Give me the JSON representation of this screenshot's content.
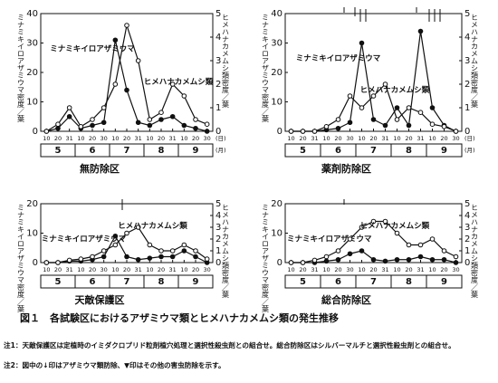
{
  "chart_data": [
    {
      "type": "line",
      "title": "無防除区",
      "ylabel": "ミナミキイロアザミウマ密度／葉",
      "y2label": "ヒメハナカメムシ類密度／葉",
      "categories": [
        "10",
        "20",
        "31",
        "10",
        "20",
        "30",
        "10",
        "20",
        "31",
        "10",
        "20",
        "31",
        "10",
        "20",
        "30"
      ],
      "months": [
        5,
        6,
        7,
        8,
        9
      ],
      "xlabel": "(日)",
      "month_label": "(月)",
      "ylim": [
        0,
        40
      ],
      "yticks": [
        0,
        10,
        20,
        30,
        40
      ],
      "y2lim": [
        0,
        5
      ],
      "y2ticks": [
        0,
        1,
        2,
        3,
        4,
        5
      ],
      "series": [
        {
          "name": "ミナミキイロアザミウマ",
          "color": "#111",
          "marker": "filled",
          "values": [
            0,
            1,
            5,
            1,
            2,
            3,
            31,
            14,
            3,
            2,
            4,
            5,
            2,
            1,
            0
          ]
        },
        {
          "name": "ヒメハナカメムシ類",
          "color": "#111",
          "marker": "open",
          "axis": "y2",
          "values": [
            0,
            0.3,
            1,
            0.2,
            0.5,
            1,
            2,
            4.5,
            3,
            0.5,
            0.8,
            2,
            1.5,
            0.5,
            0.3
          ]
        }
      ]
    },
    {
      "type": "line",
      "title": "薬剤防除区",
      "ylabel": "ミナミキイロアザミウマ密度／葉",
      "y2label": "ヒメハナカメムシ類密度／葉",
      "categories": [
        "10",
        "20",
        "31",
        "10",
        "20",
        "30",
        "10",
        "20",
        "31",
        "10",
        "20",
        "31",
        "10",
        "20",
        "30"
      ],
      "months": [
        5,
        6,
        7,
        8,
        9
      ],
      "xlabel": "(日)",
      "month_label": "(月)",
      "ylim": [
        0,
        40
      ],
      "yticks": [
        0,
        10,
        20,
        30,
        40
      ],
      "y2lim": [
        0,
        5
      ],
      "y2ticks": [
        0,
        1,
        2,
        3,
        4,
        5
      ],
      "series": [
        {
          "name": "ミナミキイロアザミウマ",
          "color": "#111",
          "marker": "filled",
          "values": [
            0,
            0,
            0,
            0.5,
            1,
            3,
            30,
            4,
            2,
            8,
            2,
            34,
            8,
            2,
            0
          ]
        },
        {
          "name": "ヒメハナカメムシ類",
          "color": "#111",
          "marker": "open",
          "axis": "y2",
          "values": [
            0,
            0,
            0,
            0.2,
            0.5,
            1.5,
            1,
            1.5,
            2,
            0.5,
            1,
            0.8,
            0.3,
            0.2,
            0
          ]
        }
      ]
    },
    {
      "type": "line",
      "title": "天敵保護区",
      "ylabel": "ミナミキイロアザミウマ密度／葉",
      "y2label": "ヒメハナカメムシ類密度／葉",
      "categories": [
        "10",
        "20",
        "31",
        "10",
        "20",
        "30",
        "10",
        "20",
        "31",
        "10",
        "20",
        "31",
        "10",
        "20",
        "30"
      ],
      "months": [
        5,
        6,
        7,
        8,
        9
      ],
      "ylim": [
        0,
        20
      ],
      "yticks": [
        0,
        10,
        20
      ],
      "y2lim": [
        0,
        5
      ],
      "y2ticks": [
        0,
        1,
        2,
        3,
        4,
        5
      ],
      "series": [
        {
          "name": "ミナミキイロアザミウマ",
          "color": "#111",
          "marker": "filled",
          "values": [
            0,
            0,
            0.5,
            0.5,
            1,
            2,
            9,
            2,
            1,
            1.5,
            2,
            2,
            4,
            2,
            0
          ]
        },
        {
          "name": "ヒメハナカメムシ類",
          "color": "#111",
          "marker": "open",
          "axis": "y2",
          "values": [
            0,
            0,
            0.2,
            0.3,
            0.5,
            1,
            1.5,
            2.5,
            3,
            1.5,
            1,
            1,
            1.5,
            1,
            0.3
          ]
        }
      ]
    },
    {
      "type": "line",
      "title": "総合防除区",
      "ylabel": "ミナミキイロアザミウマ密度／葉",
      "y2label": "ヒメハナカメムシ類密度／葉",
      "categories": [
        "10",
        "20",
        "31",
        "10",
        "20",
        "30",
        "10",
        "20",
        "31",
        "10",
        "20",
        "31",
        "10",
        "20",
        "30"
      ],
      "months": [
        5,
        6,
        7,
        8,
        9
      ],
      "ylim": [
        0,
        20
      ],
      "yticks": [
        0,
        10,
        20
      ],
      "y2lim": [
        0,
        5
      ],
      "y2ticks": [
        0,
        1,
        2,
        3,
        4,
        5
      ],
      "series": [
        {
          "name": "ミナミキイロアザミウマ",
          "color": "#111",
          "marker": "filled",
          "values": [
            0,
            0,
            0,
            0.5,
            1,
            3,
            4,
            1,
            0.5,
            1,
            1,
            2,
            1,
            1,
            0
          ]
        },
        {
          "name": "ヒメハナカメムシ類",
          "color": "#111",
          "marker": "open",
          "axis": "y2",
          "values": [
            0,
            0,
            0.2,
            0.5,
            1,
            2,
            3,
            3.5,
            3.5,
            2.5,
            1.5,
            1.5,
            2,
            1,
            0.5
          ]
        }
      ]
    }
  ],
  "caption": "図１　各試験区におけるアザミウマ類とヒメハナカメムシ類の発生推移",
  "notes": [
    "注1：天敵保護区は定植時のイミダクロプリド粒剤植穴処理と選択性殺虫剤との組合せ。総合防除区はシルバーマルチと選択性殺虫剤との組合せ。",
    "注2：図中の↓印はアザミウマ類防除、▼印はその他の害虫防除を示す。"
  ]
}
